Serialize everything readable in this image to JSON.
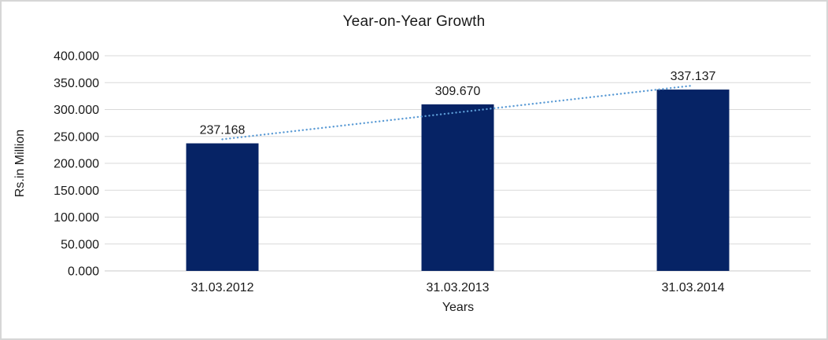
{
  "chart_title": "Year-on-Year Growth",
  "chart_data": {
    "type": "bar",
    "title": "Year-on-Year Growth",
    "xlabel": "Years",
    "ylabel": "Rs.in Million",
    "categories": [
      "31.03.2012",
      "31.03.2013",
      "31.03.2014"
    ],
    "values": [
      237.168,
      309.67,
      337.137
    ],
    "data_labels": [
      "237.168",
      "309.670",
      "337.137"
    ],
    "ylim": [
      0,
      400
    ],
    "ytick_step": 50,
    "ytick_labels": [
      "0.000",
      "50.000",
      "100.000",
      "150.000",
      "200.000",
      "250.000",
      "300.000",
      "350.000",
      "400.000"
    ],
    "grid": true,
    "legend": "none",
    "trendline": {
      "type": "linear",
      "style": "dotted",
      "color": "#5b9bd5"
    },
    "colors": {
      "bar": "#062365",
      "gridline": "#d9d9d9",
      "axis_line": "#c9c9c9",
      "text": "#1a1a1a",
      "background": "#ffffff",
      "frame_border": "#d6d6d6"
    }
  }
}
